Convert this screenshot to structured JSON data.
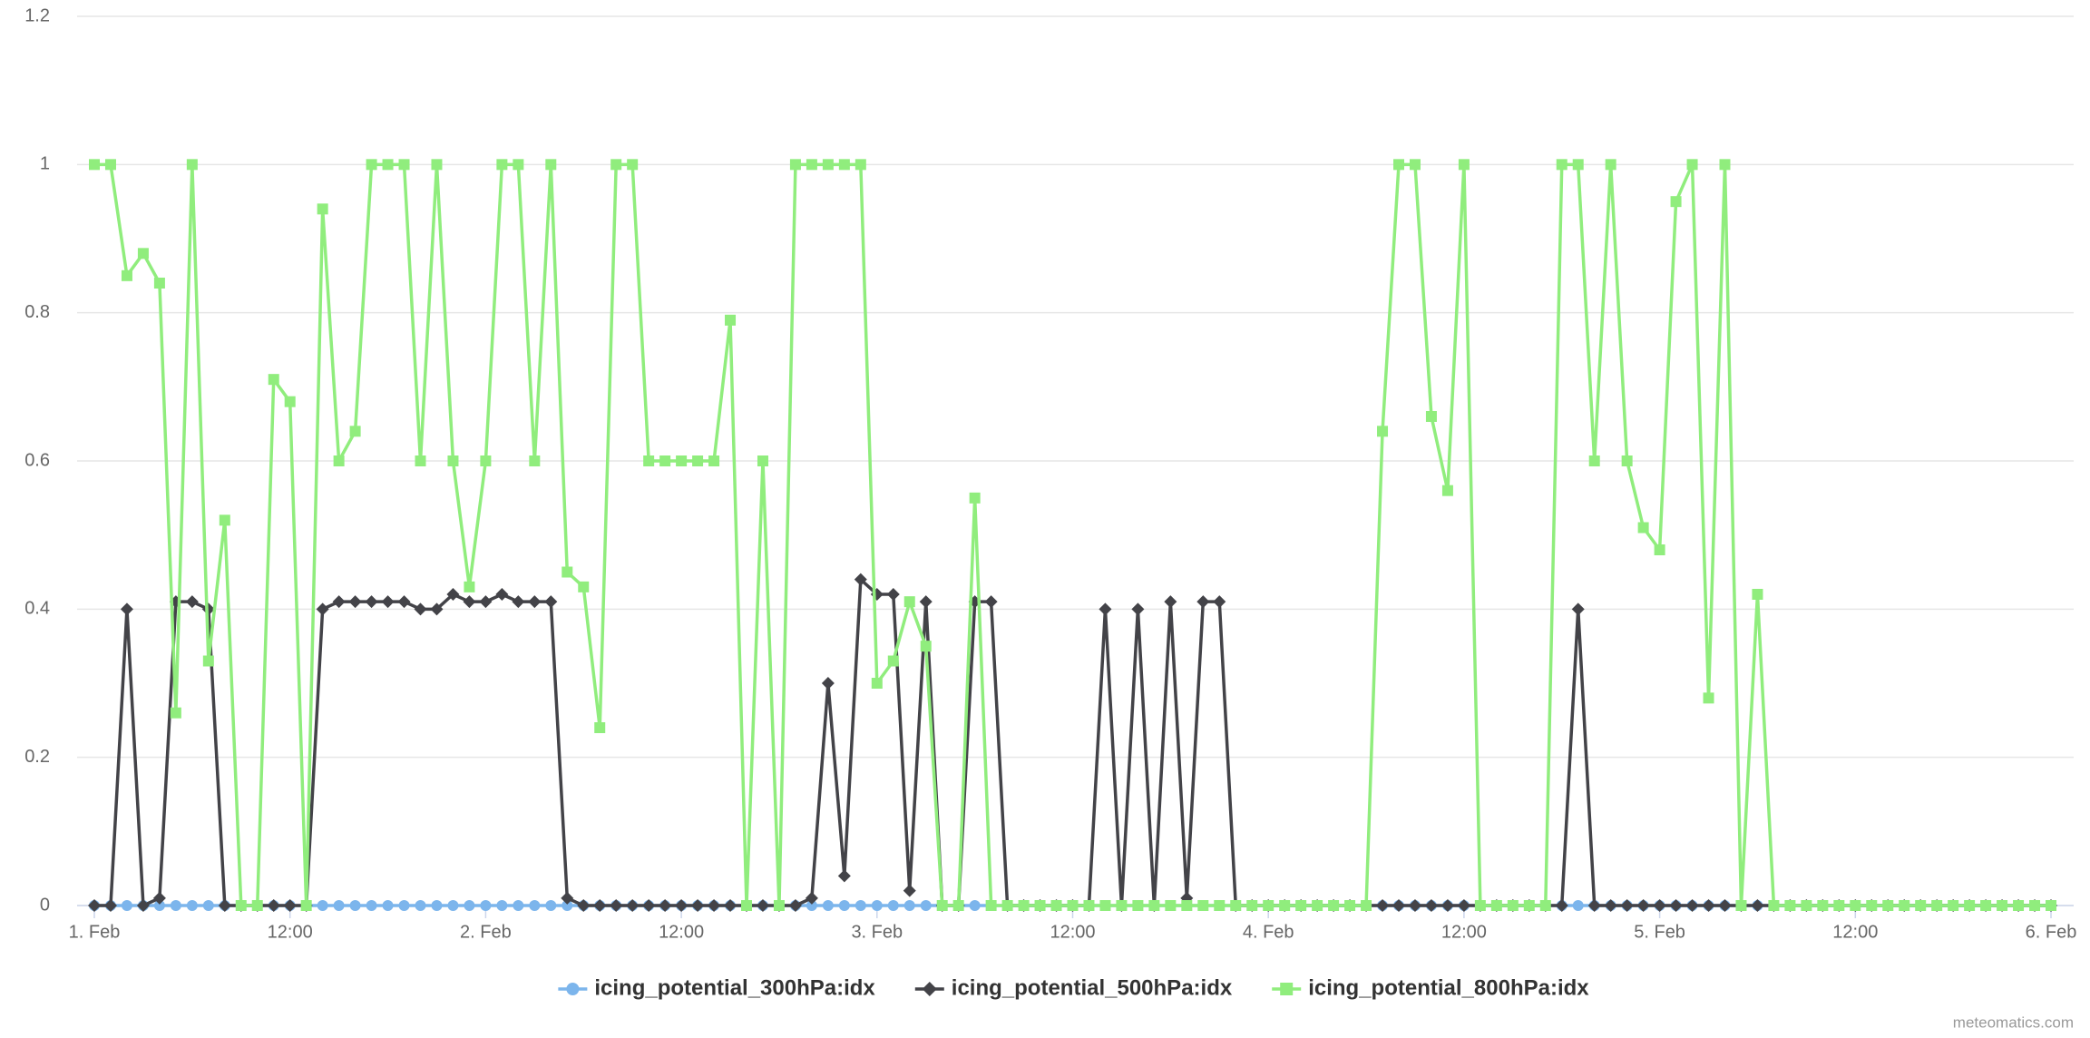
{
  "chart_data": {
    "type": "line",
    "categories": [
      "1. Feb",
      null,
      null,
      null,
      null,
      null,
      null,
      null,
      null,
      null,
      null,
      null,
      "12:00",
      null,
      null,
      null,
      null,
      null,
      null,
      null,
      null,
      null,
      null,
      null,
      "2. Feb",
      null,
      null,
      null,
      null,
      null,
      null,
      null,
      null,
      null,
      null,
      null,
      "12:00",
      null,
      null,
      null,
      null,
      null,
      null,
      null,
      null,
      null,
      null,
      null,
      "3. Feb",
      null,
      null,
      null,
      null,
      null,
      null,
      null,
      null,
      null,
      null,
      null,
      "12:00",
      null,
      null,
      null,
      null,
      null,
      null,
      null,
      null,
      null,
      null,
      null,
      "4. Feb",
      null,
      null,
      null,
      null,
      null,
      null,
      null,
      null,
      null,
      null,
      null,
      "12:00",
      null,
      null,
      null,
      null,
      null,
      null,
      null,
      null,
      null,
      null,
      null,
      "5. Feb",
      null,
      null,
      null,
      null,
      null,
      null,
      null,
      null,
      null,
      null,
      null,
      "12:00",
      null,
      null,
      null,
      null,
      null,
      null,
      null,
      null,
      null,
      null,
      null,
      "6. Feb"
    ],
    "series": [
      {
        "name": "icing_potential_300hPa:idx",
        "color": "#7cb5ec",
        "marker": "circle",
        "values": [
          0,
          0,
          0,
          0,
          0,
          0,
          0,
          0,
          0,
          0,
          0,
          0,
          0,
          0,
          0,
          0,
          0,
          0,
          0,
          0,
          0,
          0,
          0,
          0,
          0,
          0,
          0,
          0,
          0,
          0,
          0,
          0,
          0,
          0,
          0,
          0,
          0,
          0,
          0,
          0,
          0,
          0,
          0,
          0,
          0,
          0,
          0,
          0,
          0,
          0,
          0,
          0,
          0,
          0,
          0,
          0,
          0,
          0,
          0,
          0,
          0,
          0,
          0,
          0,
          0,
          0,
          0,
          0,
          0,
          0,
          0,
          0,
          0,
          0,
          0,
          0,
          0,
          0,
          0,
          0,
          0,
          0,
          0,
          0,
          0,
          0,
          0,
          0,
          0,
          0,
          0,
          0,
          0,
          0,
          0,
          0,
          0,
          0,
          0,
          0,
          0,
          0,
          0,
          0,
          0,
          0,
          0,
          0,
          0,
          0,
          0,
          0,
          0,
          0,
          0,
          0,
          0,
          0,
          0,
          0,
          0
        ]
      },
      {
        "name": "icing_potential_500hPa:idx",
        "color": "#434348",
        "marker": "diamond",
        "values": [
          0,
          0,
          0.4,
          0,
          0.01,
          0.41,
          0.41,
          0.4,
          0,
          0,
          0,
          0,
          0,
          0,
          0.4,
          0.41,
          0.41,
          0.41,
          0.41,
          0.41,
          0.4,
          0.4,
          0.42,
          0.41,
          0.41,
          0.42,
          0.41,
          0.41,
          0.41,
          0.01,
          0,
          0,
          0,
          0,
          0,
          0,
          0,
          0,
          0,
          0,
          0,
          0,
          0,
          0,
          0.01,
          0.3,
          0.04,
          0.44,
          0.42,
          0.42,
          0.02,
          0.41,
          0,
          0,
          0.41,
          0.41,
          0,
          0,
          0,
          0,
          0,
          0,
          0.4,
          0,
          0.4,
          0,
          0.41,
          0.01,
          0.41,
          0.41,
          0,
          0,
          0,
          0,
          0,
          0,
          0,
          0,
          0,
          0,
          0,
          0,
          0,
          0,
          0,
          0,
          0,
          0,
          0,
          0,
          0,
          0.4,
          0,
          0,
          0,
          0,
          0,
          0,
          0,
          0,
          0,
          0,
          0,
          0,
          0,
          0,
          0,
          0,
          0,
          0,
          0,
          0,
          0,
          0,
          0,
          0,
          0,
          0,
          0,
          0,
          0
        ]
      },
      {
        "name": "icing_potential_800hPa:idx",
        "color": "#90ed7d",
        "marker": "square",
        "values": [
          1,
          1,
          0.85,
          0.88,
          0.84,
          0.26,
          1,
          0.33,
          0.52,
          0,
          0,
          0.71,
          0.68,
          0,
          0.94,
          0.6,
          0.64,
          1,
          1,
          1,
          0.6,
          1,
          0.6,
          0.43,
          0.6,
          1,
          1,
          0.6,
          1,
          0.45,
          0.43,
          0.24,
          1,
          1,
          0.6,
          0.6,
          0.6,
          0.6,
          0.6,
          0.79,
          0,
          0.6,
          0,
          1,
          1,
          1,
          1,
          1,
          0.3,
          0.33,
          0.41,
          0.35,
          0,
          0,
          0.55,
          0,
          0,
          0,
          0,
          0,
          0,
          0,
          0,
          0,
          0,
          0,
          0,
          0,
          0,
          0,
          0,
          0,
          0,
          0,
          0,
          0,
          0,
          0,
          0,
          0.64,
          1,
          1,
          0.66,
          0.56,
          1,
          0,
          0,
          0,
          0,
          0,
          1,
          1,
          0.6,
          1,
          0.6,
          0.51,
          0.48,
          0.95,
          1,
          0.28,
          1,
          0,
          0.42,
          0,
          0,
          0,
          0,
          0,
          0,
          0,
          0,
          0,
          0,
          0,
          0,
          0,
          0,
          0,
          0,
          0,
          0
        ]
      }
    ],
    "ylim": [
      0,
      1.2
    ],
    "yticks": [
      0,
      0.2,
      0.4,
      0.6,
      0.8,
      1,
      1.2
    ],
    "grid": true,
    "legend": "bottom",
    "credits": "meteomatics.com"
  }
}
